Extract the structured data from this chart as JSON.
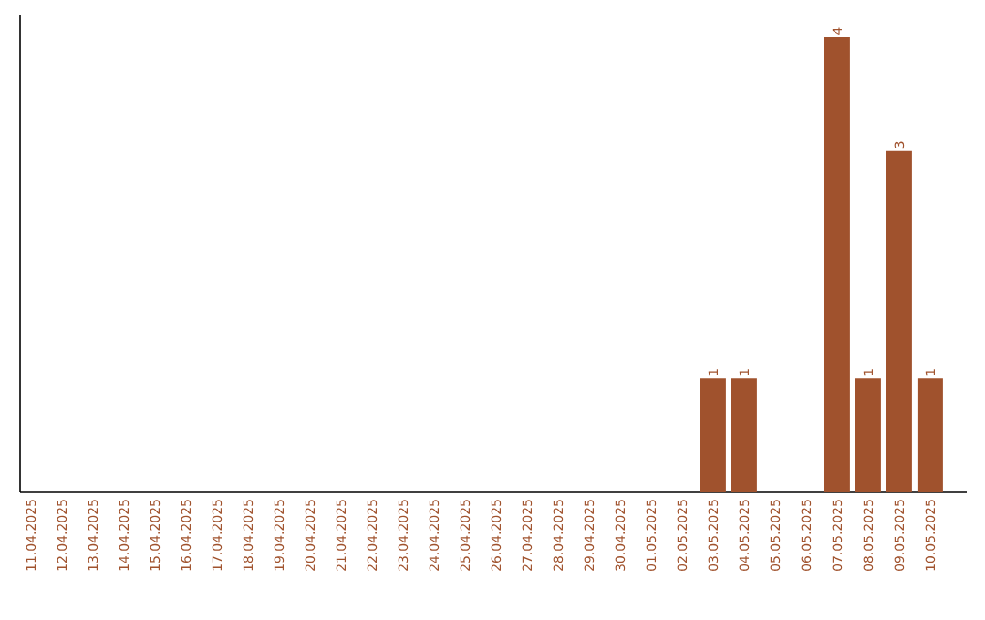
{
  "chart_data": {
    "type": "bar",
    "categories": [
      "11.04.2025",
      "12.04.2025",
      "13.04.2025",
      "14.04.2025",
      "15.04.2025",
      "16.04.2025",
      "17.04.2025",
      "18.04.2025",
      "19.04.2025",
      "20.04.2025",
      "21.04.2025",
      "22.04.2025",
      "23.04.2025",
      "24.04.2025",
      "25.04.2025",
      "26.04.2025",
      "27.04.2025",
      "28.04.2025",
      "29.04.2025",
      "30.04.2025",
      "01.05.2025",
      "02.05.2025",
      "03.05.2025",
      "04.05.2025",
      "05.05.2025",
      "06.05.2025",
      "07.05.2025",
      "08.05.2025",
      "09.05.2025",
      "10.05.2025"
    ],
    "values": [
      null,
      null,
      null,
      null,
      null,
      null,
      null,
      null,
      null,
      null,
      null,
      null,
      null,
      null,
      null,
      null,
      null,
      null,
      null,
      null,
      null,
      null,
      1,
      1,
      null,
      null,
      4,
      1,
      3,
      1
    ],
    "color": "#a0522d",
    "data_labels": true,
    "grid": false,
    "tick_labels": "x"
  }
}
